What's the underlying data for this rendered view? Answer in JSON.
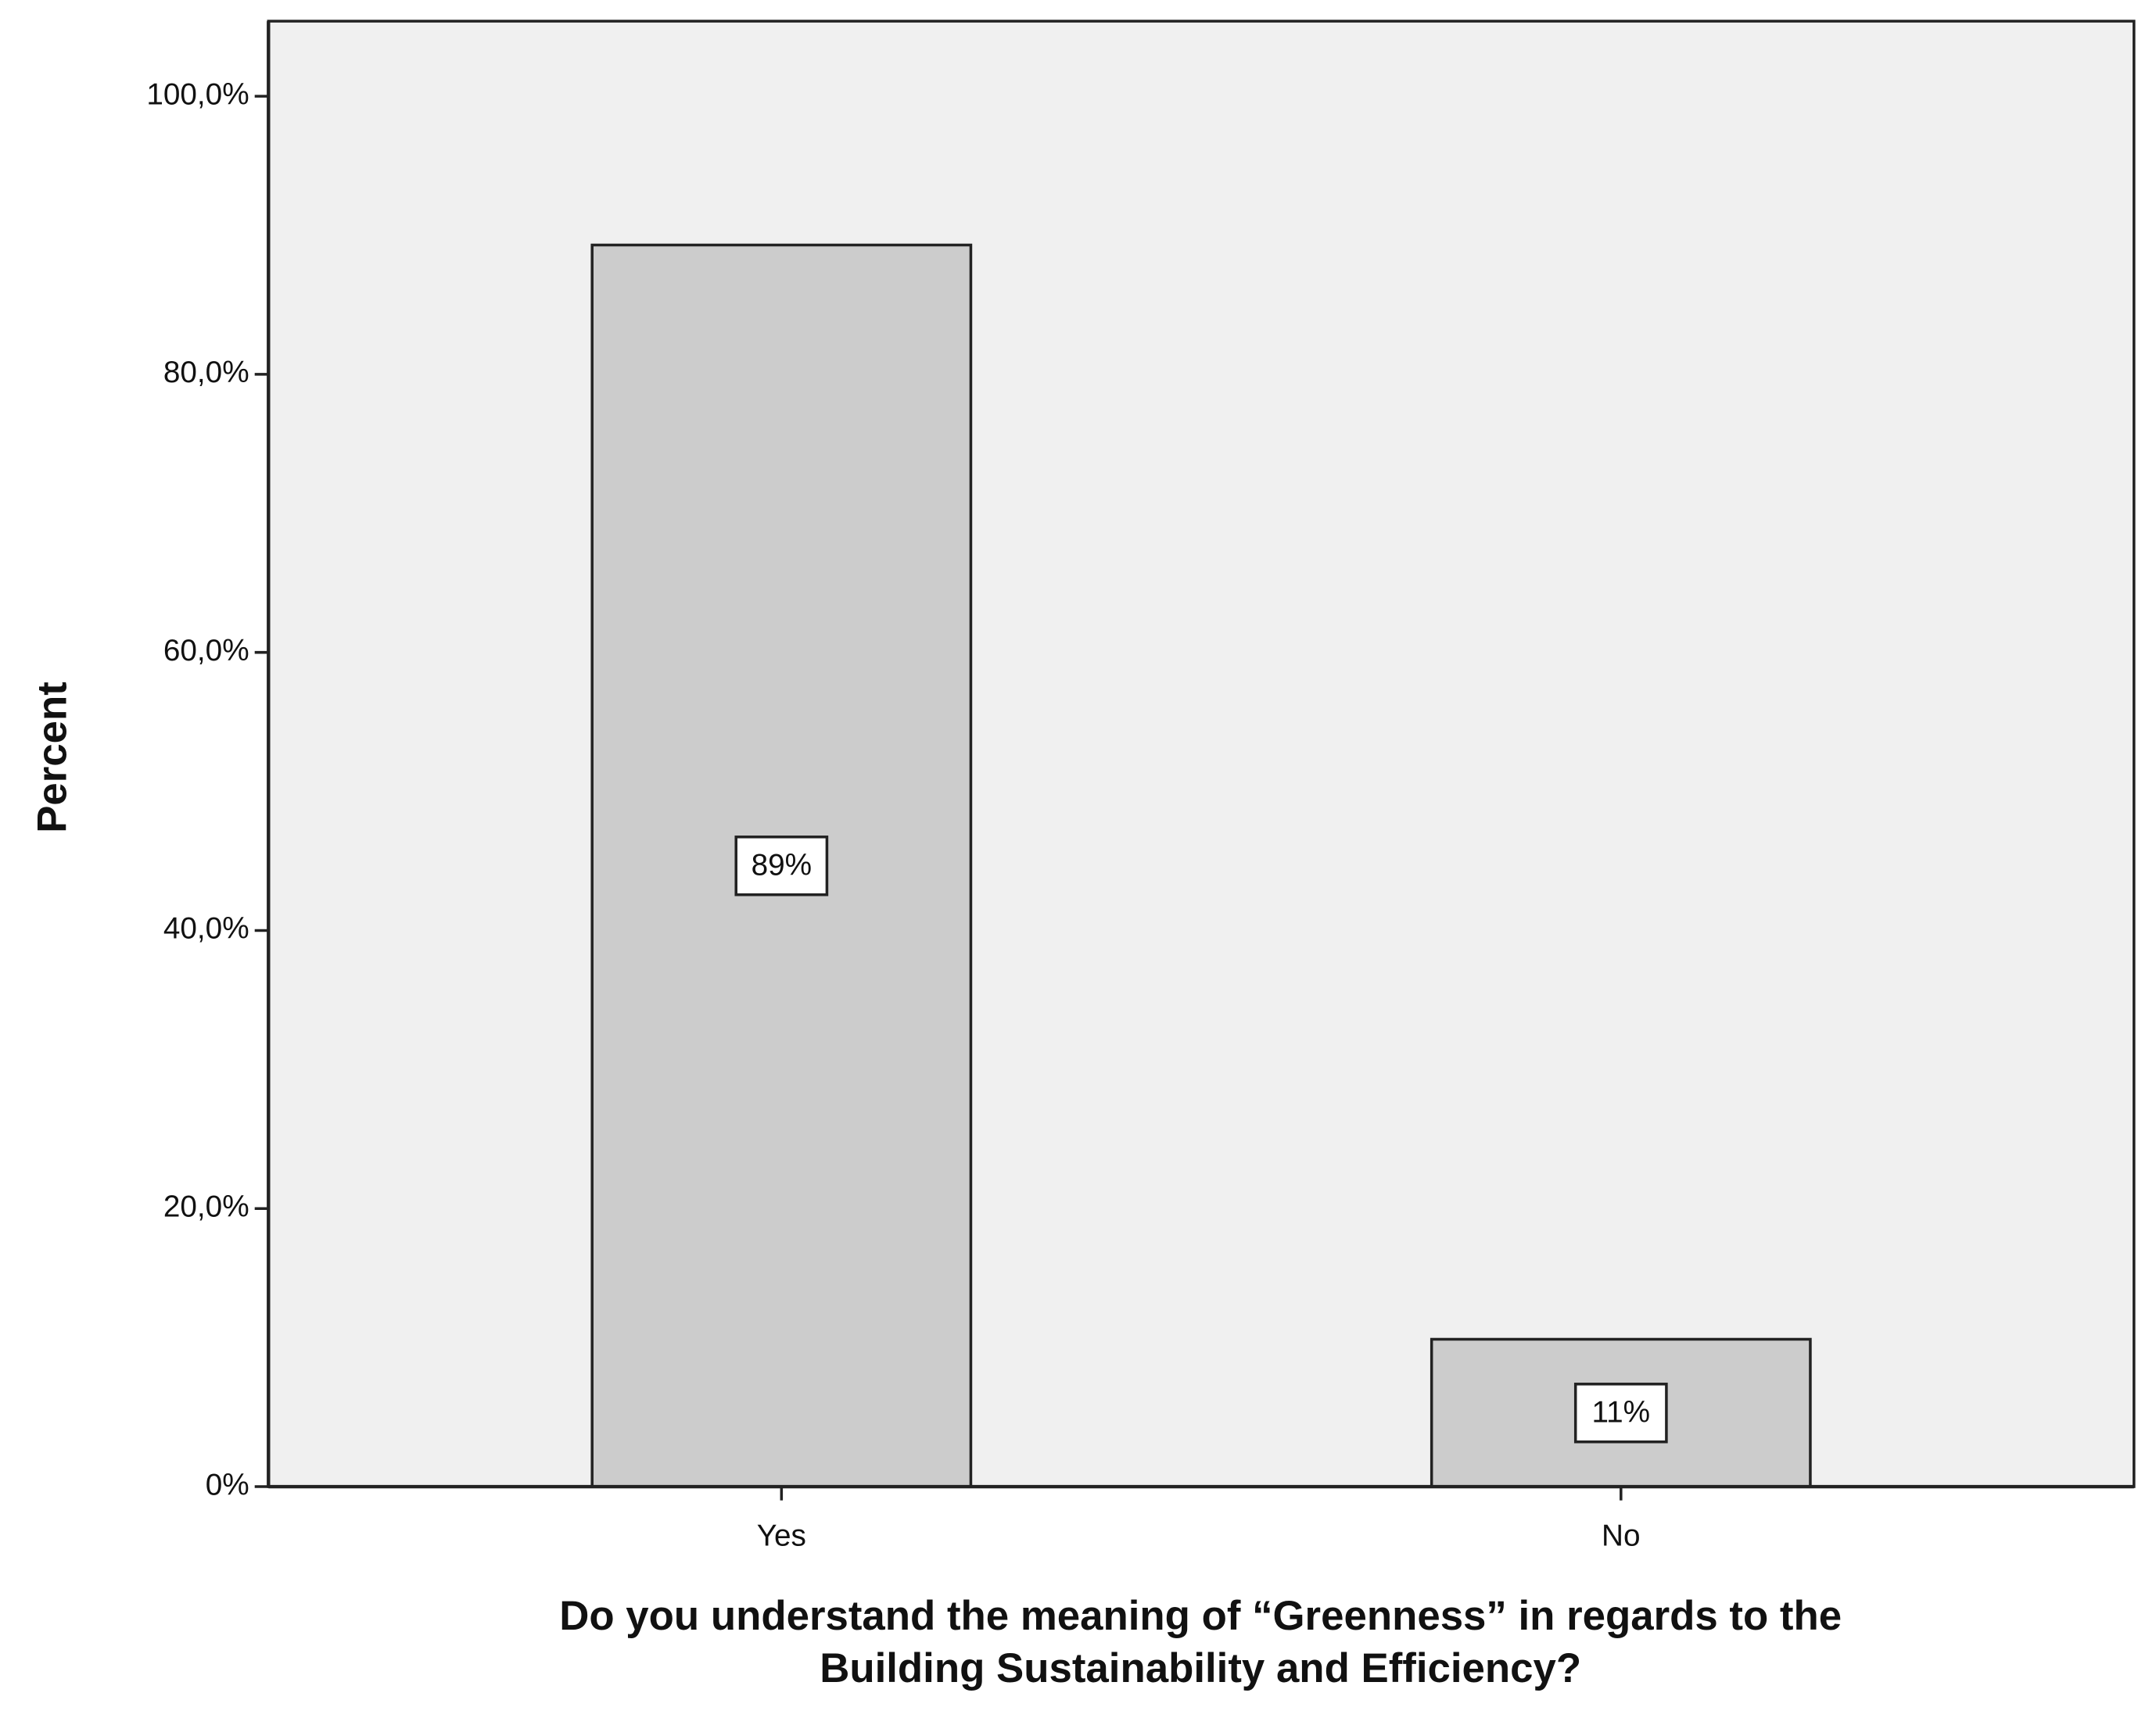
{
  "chart_data": {
    "type": "bar",
    "xlabel": [
      "Do you understand the meaning of “Greenness” in regards to the",
      "Building Sustainability and Efficiency?"
    ],
    "ylabel": "Percent",
    "categories": [
      "Yes",
      "No"
    ],
    "values": [
      89.3,
      10.6
    ],
    "value_labels": [
      "89%",
      "11%"
    ],
    "color": "#cccccc",
    "ylim": [
      0,
      105.4
    ],
    "yticks": [
      {
        "value": 0,
        "label": "0%"
      },
      {
        "value": 20,
        "label": "20,0%"
      },
      {
        "value": 40,
        "label": "40,0%"
      },
      {
        "value": 60,
        "label": "60,0%"
      },
      {
        "value": 80,
        "label": "80,0%"
      },
      {
        "value": 100,
        "label": "100,0%"
      }
    ],
    "grid": false
  }
}
